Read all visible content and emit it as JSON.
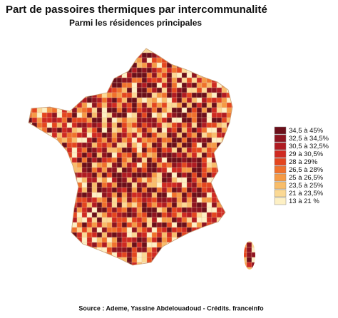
{
  "header": {
    "title": "Part de passoires thermiques par intercommunalité",
    "subtitle": "Parmi les résidences principales"
  },
  "legend": {
    "items": [
      {
        "label": "34,5 à 45%",
        "color": "#6b0f1a"
      },
      {
        "label": "32,5 à 34,5%",
        "color": "#8e1420"
      },
      {
        "label": "30,5 à 32,5%",
        "color": "#b01b22"
      },
      {
        "label": "29 à 30,5%",
        "color": "#cf2a22"
      },
      {
        "label": "28 à 29%",
        "color": "#e4461f"
      },
      {
        "label": "26,5 à 28%",
        "color": "#f0712c"
      },
      {
        "label": "25 à 26,5%",
        "color": "#f59a45"
      },
      {
        "label": "23,5 à 25%",
        "color": "#f8bd6a"
      },
      {
        "label": "21 à 23,5%",
        "color": "#fbd994"
      },
      {
        "label": "13 à 21 %",
        "color": "#fdf0c4"
      }
    ]
  },
  "source": "Source : Ademe, Yassine Abdelouadoud - Crédits. franceinfo"
}
